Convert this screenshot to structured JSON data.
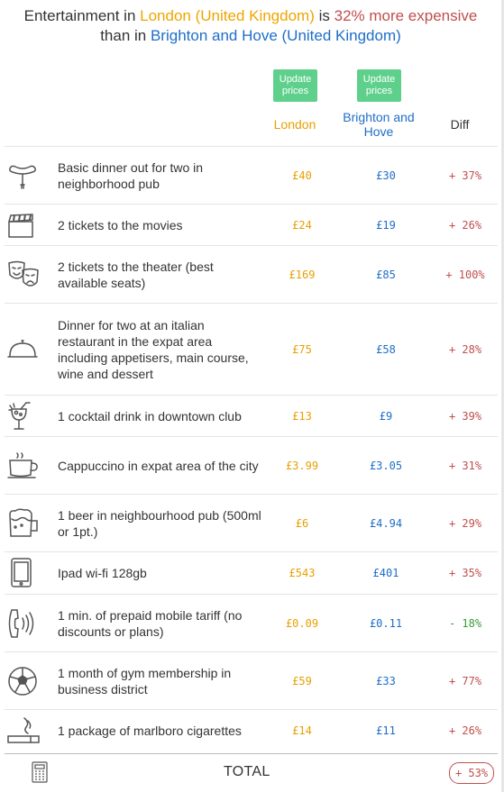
{
  "headline": {
    "part1": "Entertainment in ",
    "city1": "London (United Kingdom)",
    "part2": " is ",
    "percent": "32% more expensive",
    "part3": "than in ",
    "city2": "Brighton and Hove (United Kingdom)"
  },
  "columns": {
    "update_button": "Update prices",
    "city1": "London",
    "city2": "Brighton and Hove",
    "diff": "Diff"
  },
  "colors": {
    "city1": "#f0a500",
    "city2": "#1e6ec8",
    "expensive": "#c0504d",
    "cheaper": "#3a9a3a",
    "button": "#5ed08b"
  },
  "rows": [
    {
      "icon": "sausage-icon",
      "name": "Basic dinner out for two in neighborhood pub",
      "p1": "£40",
      "p2": "£30",
      "diff": "+ 37%",
      "trend": "up"
    },
    {
      "icon": "clapperboard-icon",
      "name": "2 tickets to the movies",
      "p1": "£24",
      "p2": "£19",
      "diff": "+ 26%",
      "trend": "up"
    },
    {
      "icon": "theater-masks-icon",
      "name": "2 tickets to the theater (best available seats)",
      "p1": "£169",
      "p2": "£85",
      "diff": "+ 100%",
      "trend": "up"
    },
    {
      "icon": "cloche-icon",
      "name": "Dinner for two at an italian restaurant in the expat area including appetisers, main course, wine and dessert",
      "p1": "£75",
      "p2": "£58",
      "diff": "+ 28%",
      "trend": "up"
    },
    {
      "icon": "cocktail-icon",
      "name": "1 cocktail drink in downtown club",
      "p1": "£13",
      "p2": "£9",
      "diff": "+ 39%",
      "trend": "up"
    },
    {
      "icon": "coffee-cup-icon",
      "name": "Cappuccino in expat area of the city",
      "p1": "£3.99",
      "p2": "£3.05",
      "diff": "+ 31%",
      "trend": "up"
    },
    {
      "icon": "beer-mug-icon",
      "name": "1 beer in neighbourhood pub (500ml or 1pt.)",
      "p1": "£6",
      "p2": "£4.94",
      "diff": "+ 29%",
      "trend": "up"
    },
    {
      "icon": "tablet-icon",
      "name": "Ipad wi-fi 128gb",
      "p1": "£543",
      "p2": "£401",
      "diff": "+ 35%",
      "trend": "up"
    },
    {
      "icon": "phone-ringing-icon",
      "name": "1 min. of prepaid mobile tariff (no discounts or plans)",
      "p1": "£0.09",
      "p2": "£0.11",
      "diff": "- 18%",
      "trend": "down"
    },
    {
      "icon": "soccer-ball-icon",
      "name": "1 month of gym membership in business district",
      "p1": "£59",
      "p2": "£33",
      "diff": "+ 77%",
      "trend": "up"
    },
    {
      "icon": "cigarette-icon",
      "name": "1 package of marlboro cigarettes",
      "p1": "£14",
      "p2": "£11",
      "diff": "+ 26%",
      "trend": "up"
    }
  ],
  "total": {
    "icon": "calculator-icon",
    "label": "TOTAL",
    "diff": "+ 53%"
  }
}
